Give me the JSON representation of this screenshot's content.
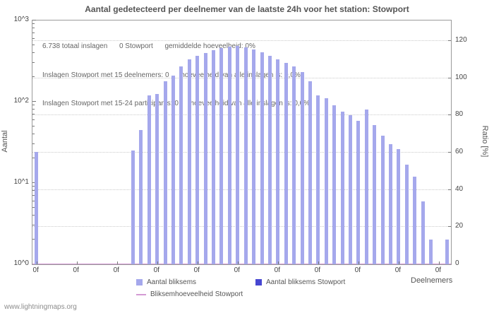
{
  "title": "Aantal gedetecteerd per deelnemer van de laatste 24h voor het station: Stowport",
  "annotations": {
    "line1": "6.738 totaal inslagen      0 Stowport      gemiddelde hoeveelheid: 0%",
    "line2": "Inslagen Stowport met 15 deelnemers: 0      hoeveelheid van alle inslagen is: 0,0%",
    "line3": "Inslagen Stowport met 15-24 participants: 0      hoeveelheid van alle inslagen is: 0,0%"
  },
  "watermark": "www.lightningmaps.org",
  "chart_data": {
    "type": "bar",
    "title": "Aantal gedetecteerd per deelnemer van de laatste 24h voor het station: Stowport",
    "y_left": {
      "label": "Aantal",
      "scale": "log",
      "range": [
        1,
        1000
      ],
      "ticks": [
        "10^0",
        "10^1",
        "10^2",
        "10^3"
      ]
    },
    "y_right": {
      "label": "Ratio [%]",
      "range": [
        0,
        131
      ],
      "ticks": [
        0,
        20,
        40,
        60,
        80,
        100,
        120
      ]
    },
    "x": {
      "label": "Deelnemers",
      "tick_label": "0f",
      "tick_every": 5
    },
    "grid": "dotted horizontal lines at right-axis ticks",
    "series": [
      {
        "name": "Aantal bliksems",
        "type": "bar",
        "color": "#a5a8ec",
        "values": [
          24,
          0,
          0,
          0,
          0,
          0,
          0,
          0,
          0,
          0,
          0,
          0,
          25,
          45,
          120,
          125,
          180,
          210,
          270,
          330,
          370,
          400,
          430,
          460,
          480,
          490,
          470,
          440,
          410,
          370,
          330,
          300,
          270,
          230,
          180,
          120,
          110,
          90,
          75,
          68,
          58,
          80,
          52,
          38,
          30,
          26,
          17,
          12,
          6,
          2,
          0,
          2
        ]
      },
      {
        "name": "Aantal bliksems Stowport",
        "type": "bar",
        "color": "#4747d1",
        "values_constant": 0
      },
      {
        "name": "Bliksemhoeveelheid Stowport",
        "type": "line",
        "color": "#d49ad4",
        "values_constant": 0
      }
    ]
  }
}
